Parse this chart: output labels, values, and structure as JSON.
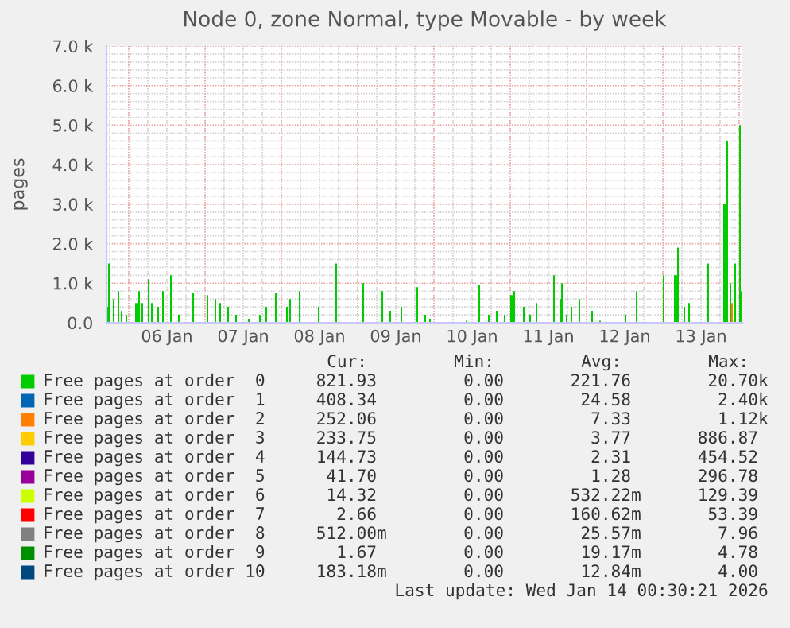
{
  "chart_data": {
    "type": "area",
    "title": "Node 0, zone Normal, type Movable - by week",
    "ylabel": "pages",
    "xlim": [
      "2026-01-05T17:00",
      "2026-01-14T01:00"
    ],
    "ylim": [
      0,
      7000
    ],
    "yticks": [
      {
        "value": 0,
        "label": "0.0"
      },
      {
        "value": 1000,
        "label": "1.0 k"
      },
      {
        "value": 2000,
        "label": "2.0 k"
      },
      {
        "value": 3000,
        "label": "3.0 k"
      },
      {
        "value": 4000,
        "label": "4.0 k"
      },
      {
        "value": 5000,
        "label": "5.0 k"
      },
      {
        "value": 6000,
        "label": "6.0 k"
      },
      {
        "value": 7000,
        "label": "7.0 k"
      }
    ],
    "xticks": [
      {
        "value": "2026-01-06T00:00",
        "label": null
      },
      {
        "value": "2026-01-06T12:00",
        "label": "06 Jan"
      },
      {
        "value": "2026-01-07T00:00",
        "label": null
      },
      {
        "value": "2026-01-07T12:00",
        "label": "07 Jan"
      },
      {
        "value": "2026-01-08T00:00",
        "label": null
      },
      {
        "value": "2026-01-08T12:00",
        "label": "08 Jan"
      },
      {
        "value": "2026-01-09T00:00",
        "label": null
      },
      {
        "value": "2026-01-09T12:00",
        "label": "09 Jan"
      },
      {
        "value": "2026-01-10T00:00",
        "label": null
      },
      {
        "value": "2026-01-10T12:00",
        "label": "10 Jan"
      },
      {
        "value": "2026-01-11T00:00",
        "label": null
      },
      {
        "value": "2026-01-11T12:00",
        "label": "11 Jan"
      },
      {
        "value": "2026-01-12T00:00",
        "label": null
      },
      {
        "value": "2026-01-12T12:00",
        "label": "12 Jan"
      },
      {
        "value": "2026-01-13T00:00",
        "label": null
      },
      {
        "value": "2026-01-13T12:00",
        "label": "13 Jan"
      },
      {
        "value": "2026-01-14T00:00",
        "label": null
      }
    ],
    "grid": true,
    "legend": "bottom",
    "series": [
      {
        "name": "Free pages at order  0",
        "color": "#00cc00",
        "x": [
          "2026-01-05T17:00",
          "2026-01-05T17:30",
          "2026-01-05T18:00",
          "2026-01-05T19:00",
          "2026-01-05T19:30",
          "2026-01-05T20:30",
          "2026-01-05T21:00",
          "2026-01-05T21:30",
          "2026-01-05T22:00",
          "2026-01-05T23:00",
          "2026-01-05T23:30",
          "2026-01-06T02:00",
          "2026-01-06T03:00",
          "2026-01-06T03:30",
          "2026-01-06T04:00",
          "2026-01-06T04:30",
          "2026-01-06T06:00",
          "2026-01-06T06:30",
          "2026-01-06T07:00",
          "2026-01-06T07:30",
          "2026-01-06T09:00",
          "2026-01-06T09:30",
          "2026-01-06T10:30",
          "2026-01-06T11:00",
          "2026-01-06T13:00",
          "2026-01-06T13:30",
          "2026-01-06T15:30",
          "2026-01-06T16:00",
          "2026-01-06T20:00",
          "2026-01-06T20:30",
          "2026-01-07T00:30",
          "2026-01-07T01:00",
          "2026-01-07T03:00",
          "2026-01-07T03:30",
          "2026-01-07T04:30",
          "2026-01-07T05:00",
          "2026-01-07T07:00",
          "2026-01-07T07:30",
          "2026-01-07T09:30",
          "2026-01-07T10:00",
          "2026-01-07T13:30",
          "2026-01-07T14:00",
          "2026-01-07T17:00",
          "2026-01-07T17:30",
          "2026-01-07T19:00",
          "2026-01-07T19:30",
          "2026-01-07T22:00",
          "2026-01-07T22:30",
          "2026-01-08T01:30",
          "2026-01-08T02:00",
          "2026-01-08T02:30",
          "2026-01-08T03:00",
          "2026-01-08T05:30",
          "2026-01-08T06:00",
          "2026-01-08T11:30",
          "2026-01-08T12:00",
          "2026-01-08T17:00",
          "2026-01-08T17:30",
          "2026-01-09T01:30",
          "2026-01-09T02:00",
          "2026-01-09T07:30",
          "2026-01-09T08:00",
          "2026-01-09T10:00",
          "2026-01-09T10:30",
          "2026-01-09T13:30",
          "2026-01-09T14:00",
          "2026-01-09T18:30",
          "2026-01-09T19:00",
          "2026-01-09T21:00",
          "2026-01-09T21:30",
          "2026-01-09T22:30",
          "2026-01-09T23:00",
          "2026-01-10T10:00",
          "2026-01-10T10:30",
          "2026-01-10T14:00",
          "2026-01-10T14:30",
          "2026-01-10T17:00",
          "2026-01-10T17:30",
          "2026-01-10T19:30",
          "2026-01-10T20:00",
          "2026-01-10T22:00",
          "2026-01-10T22:30",
          "2026-01-11T00:00",
          "2026-01-11T01:00",
          "2026-01-11T01:30",
          "2026-01-11T04:00",
          "2026-01-11T04:30",
          "2026-01-11T06:00",
          "2026-01-11T06:30",
          "2026-01-11T08:00",
          "2026-01-11T08:30",
          "2026-01-11T13:30",
          "2026-01-11T14:00",
          "2026-01-11T15:30",
          "2026-01-11T16:00",
          "2026-01-11T16:30",
          "2026-01-11T17:30",
          "2026-01-11T18:00",
          "2026-01-11T19:00",
          "2026-01-11T19:30",
          "2026-01-11T21:30",
          "2026-01-11T22:00",
          "2026-01-12T01:30",
          "2026-01-12T02:00",
          "2026-01-12T04:00",
          "2026-01-12T04:30",
          "2026-01-12T12:00",
          "2026-01-12T12:30",
          "2026-01-12T15:30",
          "2026-01-12T16:00",
          "2026-01-13T00:00",
          "2026-01-13T00:30",
          "2026-01-13T03:30",
          "2026-01-13T04:30",
          "2026-01-13T05:00",
          "2026-01-13T06:30",
          "2026-01-13T07:00",
          "2026-01-13T08:00",
          "2026-01-13T08:30",
          "2026-01-13T14:00",
          "2026-01-13T14:30",
          "2026-01-13T19:00",
          "2026-01-13T20:00",
          "2026-01-13T20:30",
          "2026-01-13T21:00",
          "2026-01-13T21:30",
          "2026-01-13T22:30",
          "2026-01-13T23:00",
          "2026-01-14T00:00",
          "2026-01-14T00:30",
          "2026-01-14T01:00"
        ],
        "values": [
          400,
          1500,
          0,
          600,
          0,
          800,
          0,
          300,
          0,
          200,
          0,
          500,
          800,
          0,
          500,
          0,
          1100,
          0,
          500,
          0,
          400,
          0,
          800,
          0,
          1200,
          0,
          200,
          0,
          750,
          0,
          700,
          0,
          600,
          0,
          500,
          0,
          400,
          0,
          200,
          0,
          100,
          0,
          200,
          0,
          400,
          0,
          750,
          0,
          400,
          0,
          600,
          0,
          800,
          0,
          400,
          0,
          1500,
          0,
          1000,
          0,
          800,
          0,
          300,
          0,
          400,
          0,
          900,
          0,
          200,
          0,
          100,
          0,
          50,
          0,
          950,
          0,
          200,
          0,
          300,
          0,
          200,
          0,
          700,
          800,
          0,
          400,
          0,
          200,
          0,
          500,
          0,
          1200,
          0,
          600,
          1000,
          0,
          200,
          0,
          400,
          0,
          600,
          0,
          300,
          0,
          50,
          0,
          200,
          0,
          800,
          0,
          1200,
          0,
          1200,
          1900,
          0,
          400,
          0,
          500,
          0,
          1500,
          0,
          3000,
          4600,
          0,
          1000,
          0,
          1500,
          0,
          5000,
          800,
          800
        ]
      },
      {
        "name": "Free pages at order  1",
        "color": "#0066b3"
      },
      {
        "name": "Free pages at order  2",
        "color": "#ff8000",
        "x": [
          "2026-01-13T21:00",
          "2026-01-13T21:30",
          "2026-01-13T22:00"
        ],
        "values": [
          0,
          500,
          0
        ]
      },
      {
        "name": "Free pages at order  3",
        "color": "#ffcc00"
      },
      {
        "name": "Free pages at order  4",
        "color": "#330099"
      },
      {
        "name": "Free pages at order  5",
        "color": "#990099"
      },
      {
        "name": "Free pages at order  6",
        "color": "#ccff00"
      },
      {
        "name": "Free pages at order  7",
        "color": "#ff0000"
      },
      {
        "name": "Free pages at order  8",
        "color": "#808080"
      },
      {
        "name": "Free pages at order  9",
        "color": "#008f00"
      },
      {
        "name": "Free pages at order 10",
        "color": "#00487d"
      }
    ],
    "annotations": [
      "Cur:",
      "Min:",
      "Avg:",
      "Max:",
      "821.93",
      "0.00",
      "221.76",
      "20.70k",
      "408.34",
      "0.00",
      "24.58",
      "2.40k",
      "252.06",
      "0.00",
      "7.33",
      "1.12k",
      "233.75",
      "0.00",
      "3.77",
      "886.87",
      "144.73",
      "0.00",
      "2.31",
      "454.52",
      "41.70",
      "0.00",
      "1.28",
      "296.78",
      "14.32",
      "0.00",
      "532.22m",
      "129.39",
      "2.66",
      "0.00",
      "160.62m",
      "53.39",
      "512.00m",
      "0.00",
      "25.57m",
      "7.96",
      "1.67",
      "0.00",
      "19.17m",
      "4.78",
      "183.18m",
      "0.00",
      "12.84m",
      "4.00",
      "Last update: Wed Jan 14 00:30:21 2026"
    ]
  }
}
